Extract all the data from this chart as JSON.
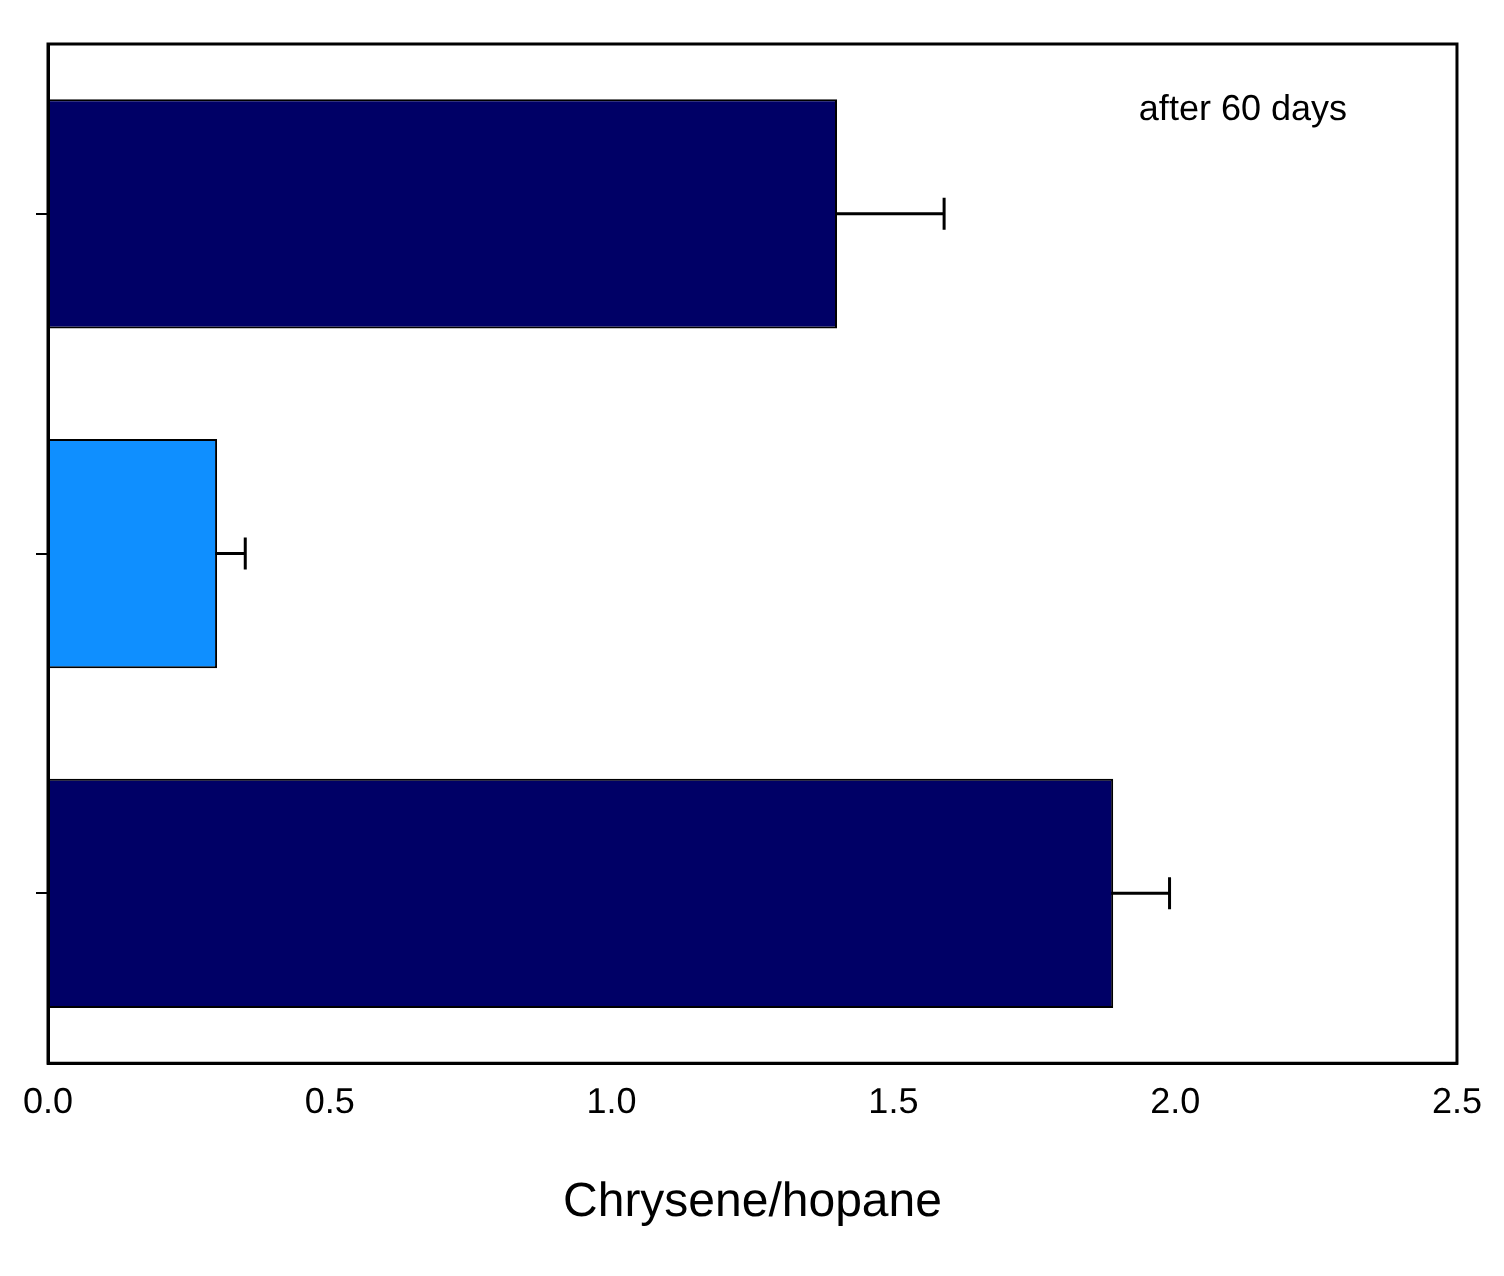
{
  "chart_data": {
    "type": "bar",
    "orientation": "horizontal",
    "xlabel": "Chrysene/hopane",
    "annotations": [
      "after 60 days"
    ],
    "categories": [
      null,
      null,
      null
    ],
    "values": [
      1.4,
      0.3,
      1.89
    ],
    "colors": [
      "#000066",
      "#0f8fff",
      "#000066"
    ],
    "errors": [
      0.19,
      0.05,
      0.1
    ],
    "xlim": [
      0,
      2.5
    ],
    "xticks": [
      {
        "value": 0,
        "label": "0.0"
      },
      {
        "value": 0.5,
        "label": "0.5"
      },
      {
        "value": 1,
        "label": "1.0"
      },
      {
        "value": 1.5,
        "label": "1.5"
      },
      {
        "value": 2,
        "label": "2.0"
      },
      {
        "value": 2.5,
        "label": "2.5"
      }
    ],
    "grid": false,
    "legend": false
  }
}
